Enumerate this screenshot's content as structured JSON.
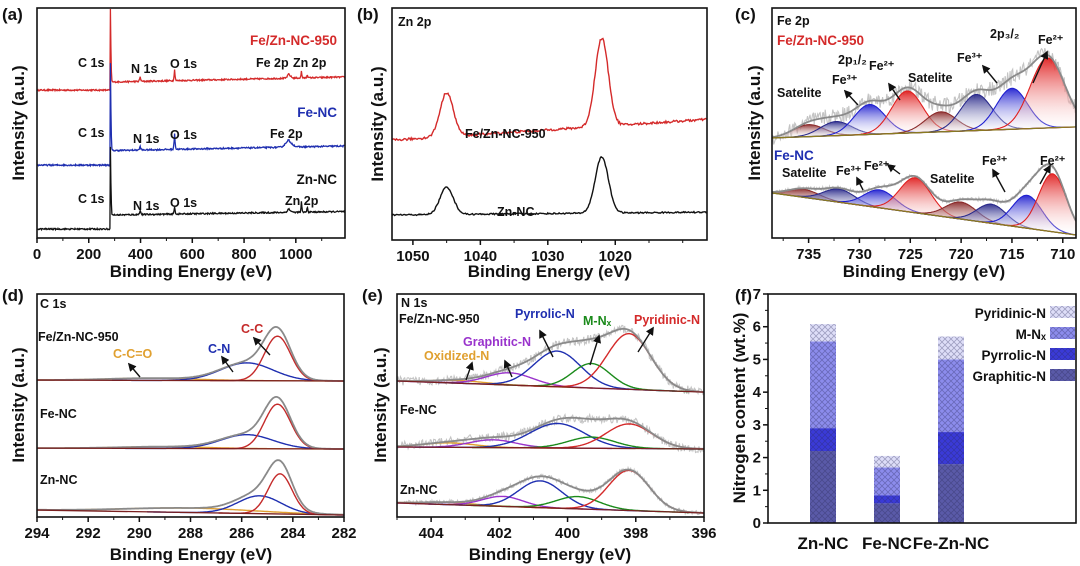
{
  "panel_labels": [
    "(a)",
    "(b)",
    "(c)",
    "(d)",
    "(e)",
    "(f)"
  ],
  "chart_data": [
    {
      "panel_id": "a",
      "type": "line",
      "kind": "survey",
      "xlabel": "Binding Energy (eV)",
      "ylabel": "Intensity (a.u.)",
      "xlim": [
        0,
        1190
      ],
      "ylim": [
        0,
        10
      ],
      "xticks": [
        0,
        200,
        400,
        600,
        800,
        1000
      ],
      "minor_step": 100,
      "series": [
        {
          "name": "Fe/Zn-NC-950",
          "color": "#d42a2a",
          "step_at": 282,
          "pre": 6.43,
          "post": 6.78,
          "end": 7.0,
          "noise": 0.03,
          "peaks": [
            {
              "center": 284,
              "height": 2.0,
              "fwhm": 5
            },
            {
              "center": 399,
              "height": 0.12,
              "fwhm": 6
            },
            {
              "center": 532,
              "height": 0.3,
              "fwhm": 5
            },
            {
              "center": 975,
              "height": 0.12,
              "fwhm": 15
            },
            {
              "center": 1022,
              "height": 0.2,
              "fwhm": 4
            },
            {
              "center": 1045,
              "height": 0.12,
              "fwhm": 4
            }
          ],
          "annotations": [
            "C 1s",
            "N 1s",
            "O 1s",
            "Fe 2p",
            "Zn 2p"
          ]
        },
        {
          "name": "Fe-NC",
          "color": "#1f2fb0",
          "step_at": 282,
          "pre": 3.17,
          "post": 3.8,
          "end": 4.0,
          "noise": 0.03,
          "peaks": [
            {
              "center": 284,
              "height": 2.4,
              "fwhm": 5
            },
            {
              "center": 399,
              "height": 0.1,
              "fwhm": 6
            },
            {
              "center": 532,
              "height": 0.45,
              "fwhm": 5
            },
            {
              "center": 975,
              "height": 0.2,
              "fwhm": 30
            }
          ],
          "annotations": [
            "C 1s",
            "N 1s",
            "O 1s",
            "Fe 2p"
          ]
        },
        {
          "name": "Zn-NC",
          "color": "#111111",
          "step_at": 282,
          "pre": 0.39,
          "post": 1.0,
          "end": 1.15,
          "noise": 0.03,
          "peaks": [
            {
              "center": 284,
              "height": 1.9,
              "fwhm": 5
            },
            {
              "center": 399,
              "height": 0.12,
              "fwhm": 6
            },
            {
              "center": 532,
              "height": 0.2,
              "fwhm": 5
            },
            {
              "center": 975,
              "height": 0.1,
              "fwhm": 15
            },
            {
              "center": 1022,
              "height": 0.3,
              "fwhm": 4
            },
            {
              "center": 1045,
              "height": 0.18,
              "fwhm": 4
            }
          ],
          "annotations": [
            "C 1s",
            "N 1s",
            "O 1s",
            "Zn 2p"
          ]
        }
      ]
    },
    {
      "panel_id": "b",
      "type": "line",
      "kind": "simple",
      "title": "Zn 2p",
      "xlabel": "Binding Energy (eV)",
      "ylabel": "Intensity (a.u.)",
      "xlim": [
        1053.1,
        1006.4
      ],
      "ylim": [
        0,
        10
      ],
      "xticks": [
        1050,
        1040,
        1030,
        1020
      ],
      "minor_step": 5,
      "series": [
        {
          "name": "Fe/Zn-NC-950",
          "color": "#d42a2a",
          "baseline": [
            4.3,
            5.2
          ],
          "noise": 0.05,
          "peaks": [
            {
              "center": 1045,
              "height": 1.9,
              "fwhm": 2.3
            },
            {
              "center": 1022,
              "height": 3.8,
              "fwhm": 2.3
            }
          ]
        },
        {
          "name": "Zn-NC",
          "color": "#111111",
          "baseline": [
            1.08,
            1.2
          ],
          "noise": 0.03,
          "peaks": [
            {
              "center": 1045,
              "height": 1.18,
              "fwhm": 2.3
            },
            {
              "center": 1022,
              "height": 2.42,
              "fwhm": 2.3
            }
          ]
        }
      ]
    },
    {
      "panel_id": "c",
      "type": "line",
      "kind": "fit",
      "fill": true,
      "title": "Fe 2p",
      "xlabel": "Binding Energy (eV)",
      "ylabel": "Intensity (a.u.)",
      "xlim": [
        738.6,
        708.7
      ],
      "ylim": [
        0,
        10
      ],
      "xticks": [
        735,
        730,
        725,
        720,
        715,
        710
      ],
      "minor_step": 2.5,
      "series": [
        {
          "name": "Fe/Zn-NC-950",
          "color": "#d42a2a",
          "baseline": [
            4.35,
            4.83
          ],
          "baseline_color": "#8a7a20",
          "noise": 0.35,
          "components": [
            {
              "name": "Satelite",
              "center": 735,
              "height": 0.52,
              "fwhm": 3.6,
              "color": "#8b2a2a"
            },
            {
              "name": "Satelite",
              "center": 732.3,
              "height": 0.61,
              "fwhm": 3.6,
              "color": "#2a2a8b"
            },
            {
              "name": "Fe3+",
              "center": 729,
              "height": 1.3,
              "fwhm": 3.6,
              "color": "#2020d0"
            },
            {
              "name": "Fe2+",
              "center": 725.3,
              "height": 1.83,
              "fwhm": 3.6,
              "color": "#e02020"
            },
            {
              "name": "Satelite",
              "center": 722,
              "height": 0.87,
              "fwhm": 3.6,
              "color": "#8b2a2a"
            },
            {
              "name": "Satelite",
              "center": 718.5,
              "height": 1.57,
              "fwhm": 3.6,
              "color": "#2a2a8b"
            },
            {
              "name": "Fe3+",
              "center": 715,
              "height": 1.78,
              "fwhm": 3.6,
              "color": "#2020d0"
            },
            {
              "name": "Fe2+",
              "center": 711.5,
              "height": 3.04,
              "fwhm": 4.0,
              "color": "#e02020"
            }
          ],
          "annotations": [
            "2p₁/₂",
            "Fe²⁺",
            "Fe³⁺",
            "Satelite",
            "Satelite",
            "2p₃/₂",
            "Fe³⁺",
            "Fe²⁺"
          ]
        },
        {
          "name": "Fe-NC",
          "color": "#1f2fb0",
          "baseline": [
            1.96,
            0.13
          ],
          "baseline_color": "#8a7a20",
          "noise": 0.08,
          "components": [
            {
              "name": "Satelite",
              "center": 735.5,
              "height": 0.35,
              "fwhm": 3.6,
              "color": "#8b2a2a"
            },
            {
              "name": "Satelite",
              "center": 732,
              "height": 0.57,
              "fwhm": 3.6,
              "color": "#2a2a8b"
            },
            {
              "name": "Fe3+",
              "center": 728,
              "height": 0.78,
              "fwhm": 3.6,
              "color": "#2020d0"
            },
            {
              "name": "Fe2+",
              "center": 724.5,
              "height": 1.52,
              "fwhm": 3.6,
              "color": "#e02020"
            },
            {
              "name": "Satelite",
              "center": 720,
              "height": 0.74,
              "fwhm": 3.6,
              "color": "#8b2a2a"
            },
            {
              "name": "Satelite",
              "center": 717,
              "height": 0.83,
              "fwhm": 3.4,
              "color": "#2a2a8b"
            },
            {
              "name": "Fe3+",
              "center": 713.5,
              "height": 1.43,
              "fwhm": 3.4,
              "color": "#2020d0"
            },
            {
              "name": "Fe2+",
              "center": 711,
              "height": 2.52,
              "fwhm": 3.2,
              "color": "#e02020"
            }
          ],
          "annotations": [
            "Satelite",
            "Fe³⁺",
            "Fe²⁺",
            "Satelite",
            "Fe³⁺",
            "Fe²⁺"
          ]
        }
      ]
    },
    {
      "panel_id": "d",
      "type": "line",
      "kind": "fit",
      "fill": false,
      "title": "C 1s",
      "xlabel": "Binding Energy (eV)",
      "ylabel": "Intensity (a.u.)",
      "xlim": [
        294,
        282
      ],
      "ylim": [
        0,
        10
      ],
      "xticks": [
        294,
        292,
        290,
        288,
        286,
        284,
        282
      ],
      "minor_step": 1,
      "series": [
        {
          "name": "Fe/Zn-NC-950",
          "baseline": [
            6.14,
            6.1
          ],
          "baseline_color": "#7a2020",
          "noise": 0,
          "components": [
            {
              "name": "C-C=O",
              "center": 289.5,
              "height": 0.1,
              "fwhm": 4,
              "color": "#e0a030"
            },
            {
              "name": "C-N",
              "center": 285.8,
              "height": 0.8,
              "fwhm": 2.4,
              "color": "#1f2fb0"
            },
            {
              "name": "C-C",
              "center": 284.6,
              "height": 2.0,
              "fwhm": 1.2,
              "color": "#c42a2a"
            }
          ],
          "annotations": [
            "C-C=O",
            "C-N",
            "C-C"
          ]
        },
        {
          "name": "Fe-NC",
          "baseline": [
            3.09,
            3.05
          ],
          "baseline_color": "#7a2020",
          "noise": 0,
          "components": [
            {
              "name": "C-C=O",
              "center": 289,
              "height": 0.08,
              "fwhm": 4,
              "color": "#e0a030"
            },
            {
              "name": "C-N",
              "center": 285.8,
              "height": 0.63,
              "fwhm": 2.4,
              "color": "#1f2fb0"
            },
            {
              "name": "C-C",
              "center": 284.6,
              "height": 2.0,
              "fwhm": 1.2,
              "color": "#c42a2a"
            }
          ]
        },
        {
          "name": "Zn-NC",
          "baseline": [
            0.31,
            0.09
          ],
          "baseline_color": "#7a2020",
          "noise": 0,
          "components": [
            {
              "name": "C-C=O",
              "center": 288,
              "height": 0.2,
              "fwhm": 6,
              "color": "#e0a030"
            },
            {
              "name": "C-N",
              "center": 285.3,
              "height": 0.8,
              "fwhm": 2,
              "color": "#1f2fb0"
            },
            {
              "name": "C-C",
              "center": 284.5,
              "height": 1.8,
              "fwhm": 1.1,
              "color": "#c42a2a"
            }
          ]
        }
      ]
    },
    {
      "panel_id": "e",
      "type": "line",
      "kind": "fit",
      "fill": false,
      "title": "N 1s",
      "xlabel": "Binding Energy (eV)",
      "ylabel": "Intensity (a.u.)",
      "xlim": [
        405,
        396
      ],
      "ylim": [
        0,
        10
      ],
      "xticks": [
        404,
        402,
        400,
        398,
        396
      ],
      "minor_step": 1,
      "series": [
        {
          "name": "Fe/Zn-NC-950",
          "baseline": [
            6.1,
            5.6
          ],
          "baseline_color": "#7a2020",
          "noise": 0.2,
          "components": [
            {
              "name": "Oxidized-N",
              "center": 403.2,
              "height": 0.12,
              "fwhm": 1.8,
              "color": "#e0a030"
            },
            {
              "name": "Graphitic-N",
              "center": 401.7,
              "height": 0.55,
              "fwhm": 1.6,
              "color": "#9933cc"
            },
            {
              "name": "Pyrrolic-N",
              "center": 400.3,
              "height": 1.6,
              "fwhm": 1.6,
              "color": "#1f2fb0"
            },
            {
              "name": "M-Nₓ",
              "center": 399.3,
              "height": 1.1,
              "fwhm": 1.3,
              "color": "#1a8a1a"
            },
            {
              "name": "Pyridinic-N",
              "center": 398.2,
              "height": 2.5,
              "fwhm": 1.5,
              "color": "#d42a2a"
            }
          ]
        },
        {
          "name": "Fe-NC",
          "baseline": [
            3.14,
            3.05
          ],
          "baseline_color": "#7a2020",
          "noise": 0.2,
          "components": [
            {
              "name": "Oxidized-N",
              "center": 403.5,
              "height": 0.2,
              "fwhm": 1.8,
              "color": "#e0a030"
            },
            {
              "name": "Graphitic-N",
              "center": 402.2,
              "height": 0.35,
              "fwhm": 1.6,
              "color": "#9933cc"
            },
            {
              "name": "Pyrrolic-N",
              "center": 400.3,
              "height": 1.1,
              "fwhm": 1.9,
              "color": "#1f2fb0"
            },
            {
              "name": "M-Nₓ",
              "center": 399.3,
              "height": 0.5,
              "fwhm": 1.6,
              "color": "#1a8a1a"
            },
            {
              "name": "Pyridinic-N",
              "center": 398.2,
              "height": 1.1,
              "fwhm": 1.6,
              "color": "#d42a2a"
            }
          ]
        },
        {
          "name": "Zn-NC",
          "baseline": [
            0.63,
            0.18
          ],
          "baseline_color": "#7a2020",
          "noise": 0.1,
          "components": [
            {
              "name": "Oxidized-N",
              "center": 403.5,
              "height": 0.1,
              "fwhm": 1.8,
              "color": "#e0a030"
            },
            {
              "name": "Graphitic-N",
              "center": 401.9,
              "height": 0.45,
              "fwhm": 1.4,
              "color": "#9933cc"
            },
            {
              "name": "Pyrrolic-N",
              "center": 400.8,
              "height": 1.2,
              "fwhm": 1.5,
              "color": "#1f2fb0"
            },
            {
              "name": "M-Nₓ",
              "center": 399.7,
              "height": 0.55,
              "fwhm": 1.5,
              "color": "#1a8a1a"
            },
            {
              "name": "Pyridinic-N",
              "center": 398.2,
              "height": 1.8,
              "fwhm": 1.4,
              "color": "#d42a2a"
            }
          ]
        }
      ]
    },
    {
      "panel_id": "f",
      "type": "bar",
      "stacked": true,
      "xlabel": "",
      "ylabel": "Nitrogen content (wt.%)",
      "ylim": [
        0,
        7
      ],
      "yticks": [
        0,
        1,
        2,
        3,
        4,
        5,
        6,
        7
      ],
      "minor_step": 0.5,
      "categories": [
        "Zn-NC",
        "Fe-NC",
        "Fe-Zn-NC"
      ],
      "legend_position": "top-right",
      "series": [
        {
          "name": "Graphitic-N",
          "color": "#5a5aa8",
          "values": [
            2.2,
            0.6,
            1.8
          ]
        },
        {
          "name": "Pyrrolic-N",
          "color": "#3a3ad8",
          "values": [
            0.7,
            0.25,
            0.98
          ]
        },
        {
          "name": "M-Nₓ",
          "color": "#8c8cec",
          "values": [
            2.65,
            0.85,
            2.22
          ]
        },
        {
          "name": "Pyridinic-N",
          "color": "#dedef8",
          "values": [
            0.53,
            0.35,
            0.7
          ]
        }
      ]
    }
  ]
}
